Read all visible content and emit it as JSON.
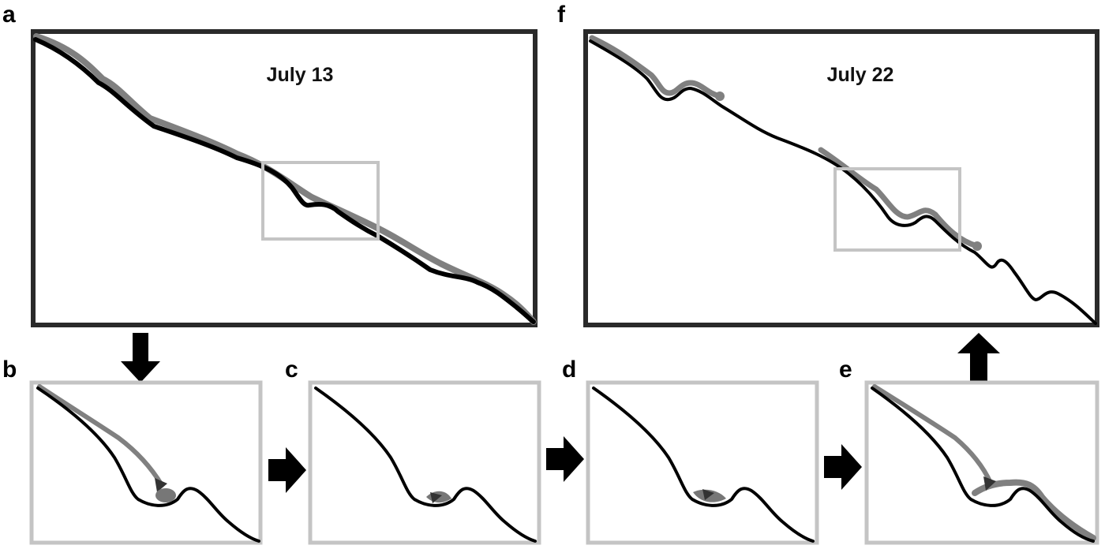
{
  "panels": {
    "a": {
      "letter": "a",
      "date": "July 13"
    },
    "b": {
      "letter": "b"
    },
    "c": {
      "letter": "c"
    },
    "d": {
      "letter": "d"
    },
    "e": {
      "letter": "e"
    },
    "f": {
      "letter": "f",
      "date": "July 22"
    }
  },
  "colors": {
    "profile_black": "#000000",
    "profile_grey": "#808080",
    "frame_dark": "#2a2a2a",
    "frame_light": "#c4c4c4"
  }
}
